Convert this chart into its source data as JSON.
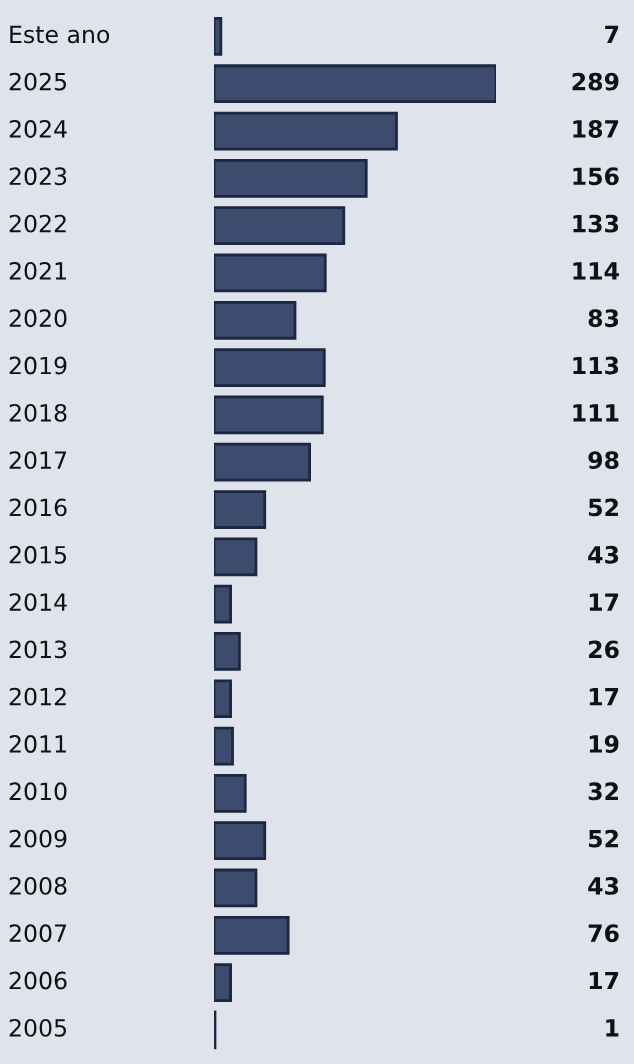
{
  "chart_data": {
    "type": "bar",
    "orientation": "horizontal",
    "data_labels": true,
    "color": "#3d4b6e",
    "categories": [
      "Este ano",
      "2025",
      "2024",
      "2023",
      "2022",
      "2021",
      "2020",
      "2019",
      "2018",
      "2017",
      "2016",
      "2015",
      "2014",
      "2013",
      "2012",
      "2011",
      "2010",
      "2009",
      "2008",
      "2007",
      "2006",
      "2005"
    ],
    "values": [
      7,
      289,
      187,
      156,
      133,
      114,
      83,
      113,
      111,
      98,
      52,
      43,
      17,
      26,
      17,
      19,
      32,
      52,
      43,
      76,
      17,
      1
    ]
  }
}
